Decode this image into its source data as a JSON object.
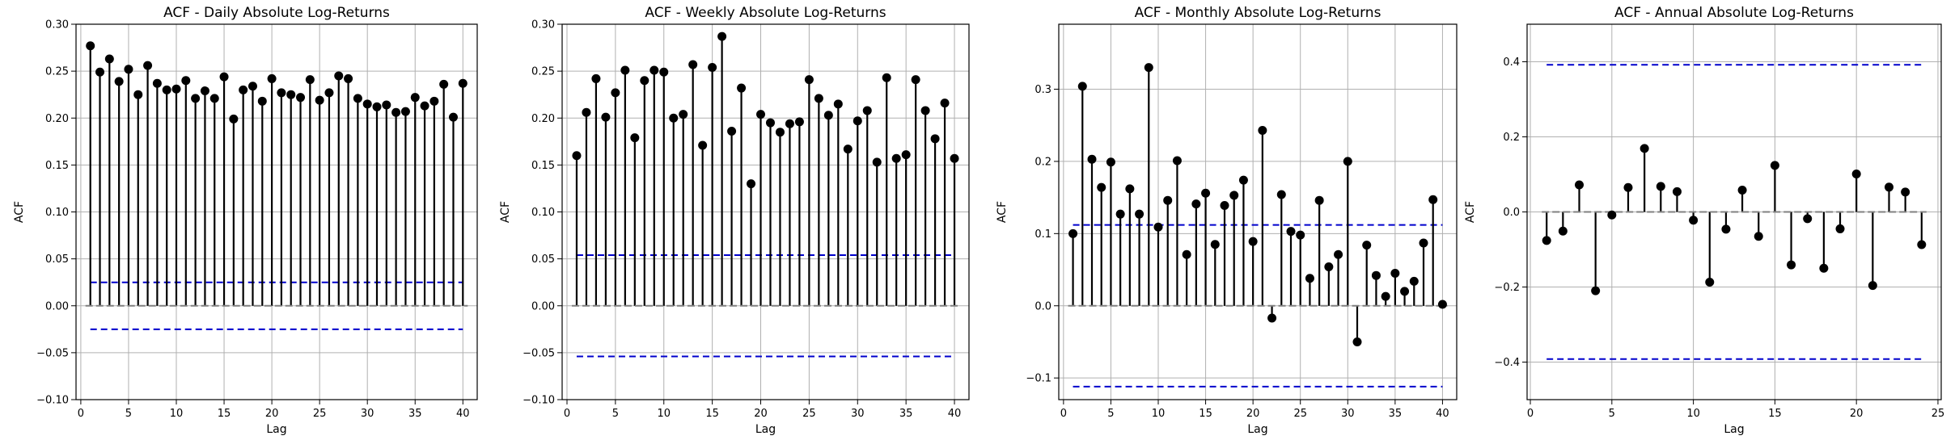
{
  "chart_data": [
    {
      "type": "stem",
      "title": "ACF - Daily Absolute Log-Returns",
      "xlabel": "Lag",
      "ylabel": "ACF",
      "xlim": [
        -0.5,
        41.5
      ],
      "ylim": [
        -0.1,
        0.3
      ],
      "xticks": [
        0,
        5,
        10,
        15,
        20,
        25,
        30,
        35,
        40
      ],
      "yticks": [
        -0.1,
        -0.05,
        0.0,
        0.05,
        0.1,
        0.15,
        0.2,
        0.25,
        0.3
      ],
      "ytick_labels": [
        "−0.10",
        "−0.05",
        "0.00",
        "0.05",
        "0.10",
        "0.15",
        "0.20",
        "0.25",
        "0.30"
      ],
      "grid": true,
      "confidence_band": [
        -0.025,
        0.025
      ],
      "x": [
        1,
        2,
        3,
        4,
        5,
        6,
        7,
        8,
        9,
        10,
        11,
        12,
        13,
        14,
        15,
        16,
        17,
        18,
        19,
        20,
        21,
        22,
        23,
        24,
        25,
        26,
        27,
        28,
        29,
        30,
        31,
        32,
        33,
        34,
        35,
        36,
        37,
        38,
        39,
        40
      ],
      "values": [
        0.277,
        0.249,
        0.263,
        0.239,
        0.252,
        0.225,
        0.256,
        0.237,
        0.23,
        0.231,
        0.24,
        0.221,
        0.229,
        0.221,
        0.244,
        0.199,
        0.23,
        0.234,
        0.218,
        0.242,
        0.227,
        0.225,
        0.222,
        0.241,
        0.219,
        0.227,
        0.245,
        0.242,
        0.221,
        0.215,
        0.212,
        0.214,
        0.206,
        0.207,
        0.222,
        0.213,
        0.218,
        0.236,
        0.201,
        0.237
      ]
    },
    {
      "type": "stem",
      "title": "ACF - Weekly Absolute Log-Returns",
      "xlabel": "Lag",
      "ylabel": "ACF",
      "xlim": [
        -0.5,
        41.5
      ],
      "ylim": [
        -0.1,
        0.3
      ],
      "xticks": [
        0,
        5,
        10,
        15,
        20,
        25,
        30,
        35,
        40
      ],
      "yticks": [
        -0.1,
        -0.05,
        0.0,
        0.05,
        0.1,
        0.15,
        0.2,
        0.25,
        0.3
      ],
      "ytick_labels": [
        "−0.10",
        "−0.05",
        "0.00",
        "0.05",
        "0.10",
        "0.15",
        "0.20",
        "0.25",
        "0.30"
      ],
      "grid": true,
      "confidence_band": [
        -0.054,
        0.054
      ],
      "x": [
        1,
        2,
        3,
        4,
        5,
        6,
        7,
        8,
        9,
        10,
        11,
        12,
        13,
        14,
        15,
        16,
        17,
        18,
        19,
        20,
        21,
        22,
        23,
        24,
        25,
        26,
        27,
        28,
        29,
        30,
        31,
        32,
        33,
        34,
        35,
        36,
        37,
        38,
        39,
        40
      ],
      "values": [
        0.16,
        0.206,
        0.242,
        0.201,
        0.227,
        0.251,
        0.179,
        0.24,
        0.251,
        0.249,
        0.2,
        0.204,
        0.257,
        0.171,
        0.254,
        0.287,
        0.186,
        0.232,
        0.13,
        0.204,
        0.195,
        0.185,
        0.194,
        0.196,
        0.241,
        0.221,
        0.203,
        0.215,
        0.167,
        0.197,
        0.208,
        0.153,
        0.243,
        0.157,
        0.161,
        0.241,
        0.208,
        0.178,
        0.216,
        0.157
      ]
    },
    {
      "type": "stem",
      "title": "ACF - Monthly Absolute Log-Returns",
      "xlabel": "Lag",
      "ylabel": "ACF",
      "xlim": [
        -0.5,
        41.5
      ],
      "ylim": [
        -0.13,
        0.39
      ],
      "xticks": [
        0,
        5,
        10,
        15,
        20,
        25,
        30,
        35,
        40
      ],
      "yticks": [
        -0.1,
        0.0,
        0.1,
        0.2,
        0.3
      ],
      "ytick_labels": [
        "−0.1",
        "0.0",
        "0.1",
        "0.2",
        "0.3"
      ],
      "grid": true,
      "confidence_band": [
        -0.112,
        0.112
      ],
      "x": [
        1,
        2,
        3,
        4,
        5,
        6,
        7,
        8,
        9,
        10,
        11,
        12,
        13,
        14,
        15,
        16,
        17,
        18,
        19,
        20,
        21,
        22,
        23,
        24,
        25,
        26,
        27,
        28,
        29,
        30,
        31,
        32,
        33,
        34,
        35,
        36,
        37,
        38,
        39,
        40
      ],
      "values": [
        0.1,
        0.304,
        0.203,
        0.164,
        0.199,
        0.127,
        0.162,
        0.127,
        0.33,
        0.109,
        0.146,
        0.201,
        0.071,
        0.141,
        0.156,
        0.085,
        0.139,
        0.153,
        0.174,
        0.089,
        0.243,
        -0.017,
        0.154,
        0.103,
        0.098,
        0.038,
        0.146,
        0.054,
        0.071,
        0.2,
        -0.05,
        0.084,
        0.042,
        0.013,
        0.045,
        0.02,
        0.034,
        0.087,
        0.147,
        0.002
      ]
    },
    {
      "type": "stem",
      "title": "ACF - Annual Absolute Log-Returns",
      "xlabel": "Lag",
      "ylabel": "ACF",
      "xlim": [
        -0.2,
        25.2
      ],
      "ylim": [
        -0.5,
        0.5
      ],
      "xticks": [
        0,
        5,
        10,
        15,
        20,
        25
      ],
      "yticks": [
        -0.4,
        -0.2,
        0.0,
        0.2,
        0.4
      ],
      "ytick_labels": [
        "−0.4",
        "−0.2",
        "0.0",
        "0.2",
        "0.4"
      ],
      "grid": true,
      "confidence_band": [
        -0.392,
        0.392
      ],
      "x": [
        1,
        2,
        3,
        4,
        5,
        6,
        7,
        8,
        9,
        10,
        11,
        12,
        13,
        14,
        15,
        16,
        17,
        18,
        19,
        20,
        21,
        22,
        23,
        24
      ],
      "values": [
        -0.076,
        -0.051,
        0.072,
        -0.21,
        -0.008,
        0.065,
        0.169,
        0.068,
        0.054,
        -0.022,
        -0.187,
        -0.046,
        0.058,
        -0.065,
        0.124,
        -0.141,
        -0.018,
        -0.15,
        -0.045,
        0.101,
        -0.196,
        0.066,
        0.053,
        -0.087
      ]
    }
  ],
  "colors": {
    "stem": "#000000",
    "marker": "#000000",
    "baseline": "#808080",
    "confidence": "#0000cc",
    "grid": "#b0b0b0"
  }
}
